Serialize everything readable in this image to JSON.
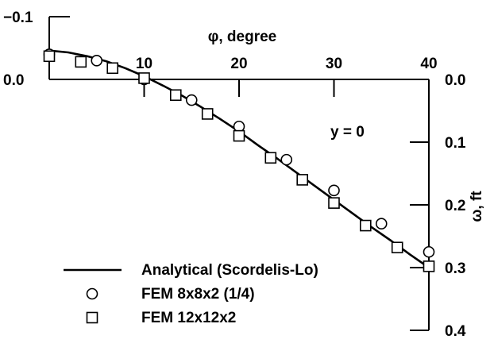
{
  "chart_data": {
    "type": "line",
    "title": "",
    "xlabel": "φ, degree",
    "ylabel": "ω, ft",
    "annotation": "y = 0",
    "xlim": [
      0,
      40
    ],
    "ylim": [
      -0.1,
      0.4
    ],
    "x_ticks": [
      0,
      10,
      20,
      30,
      40
    ],
    "x_tick_labels": [
      "10",
      "20",
      "30",
      "40"
    ],
    "y_left_ticks": [
      -0.1,
      0.0
    ],
    "y_left_tick_labels": [
      "−0.1",
      "0.0"
    ],
    "y_right_ticks": [
      0.0,
      0.1,
      0.2,
      0.3,
      0.4
    ],
    "y_right_tick_labels": [
      "0.0",
      "0.1",
      "0.2",
      "0.3",
      "0.4"
    ],
    "series": [
      {
        "name": "Analytical (Scordelis-Lo)",
        "marker": "line",
        "x": [
          0,
          2,
          4,
          6,
          8,
          10,
          12,
          14,
          16,
          18,
          20,
          22,
          24,
          26,
          28,
          30,
          32,
          34,
          36,
          38,
          40
        ],
        "y": [
          -0.046,
          -0.043,
          -0.037,
          -0.029,
          -0.018,
          -0.005,
          0.01,
          0.026,
          0.044,
          0.063,
          0.083,
          0.105,
          0.126,
          0.148,
          0.17,
          0.192,
          0.214,
          0.236,
          0.257,
          0.279,
          0.3
        ]
      },
      {
        "name": "FEM 8x8x2 (1/4)",
        "marker": "circle",
        "x": [
          0,
          5,
          10,
          15,
          20,
          25,
          30,
          35,
          40
        ],
        "y": [
          -0.04,
          -0.03,
          0.0,
          0.033,
          0.075,
          0.128,
          0.177,
          0.23,
          0.275
        ]
      },
      {
        "name": "FEM 12x12x2",
        "marker": "square",
        "x": [
          0,
          3.33,
          6.67,
          10,
          13.33,
          16.67,
          20,
          23.33,
          26.67,
          30,
          33.33,
          36.67,
          40
        ],
        "y": [
          -0.037,
          -0.028,
          -0.018,
          -0.002,
          0.025,
          0.055,
          0.09,
          0.125,
          0.16,
          0.197,
          0.233,
          0.268,
          0.298
        ]
      }
    ],
    "legend_position": "bottom-left"
  }
}
